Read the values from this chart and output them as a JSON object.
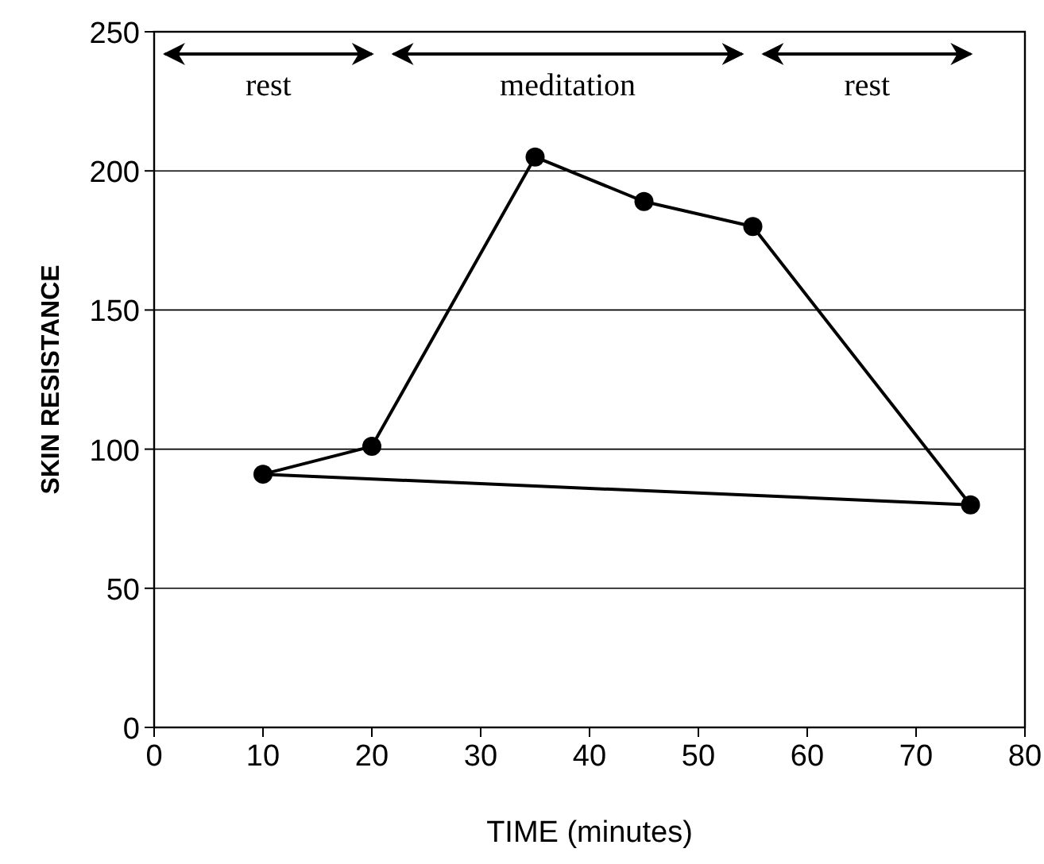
{
  "chart_data": {
    "type": "line",
    "xlabel": "TIME (minutes)",
    "ylabel": "SKIN RESISTANCE",
    "xlim": [
      0,
      80
    ],
    "xticks": [
      0,
      10,
      20,
      30,
      40,
      50,
      60,
      70,
      80
    ],
    "ylim": [
      0,
      250
    ],
    "yticks": [
      0,
      50,
      100,
      150,
      200,
      250
    ],
    "grid": "y",
    "marker": "circle",
    "line_style": "solid",
    "series": [
      {
        "color": "#000000",
        "x": [
          10,
          20,
          35,
          45,
          55,
          75
        ],
        "values": [
          91,
          101,
          205,
          189,
          180,
          80
        ]
      },
      {
        "color": "#000000",
        "x": [
          10,
          75
        ],
        "values": [
          91,
          80
        ],
        "marker": "none"
      }
    ],
    "annotations": [
      "rest",
      "meditation",
      "rest"
    ]
  }
}
